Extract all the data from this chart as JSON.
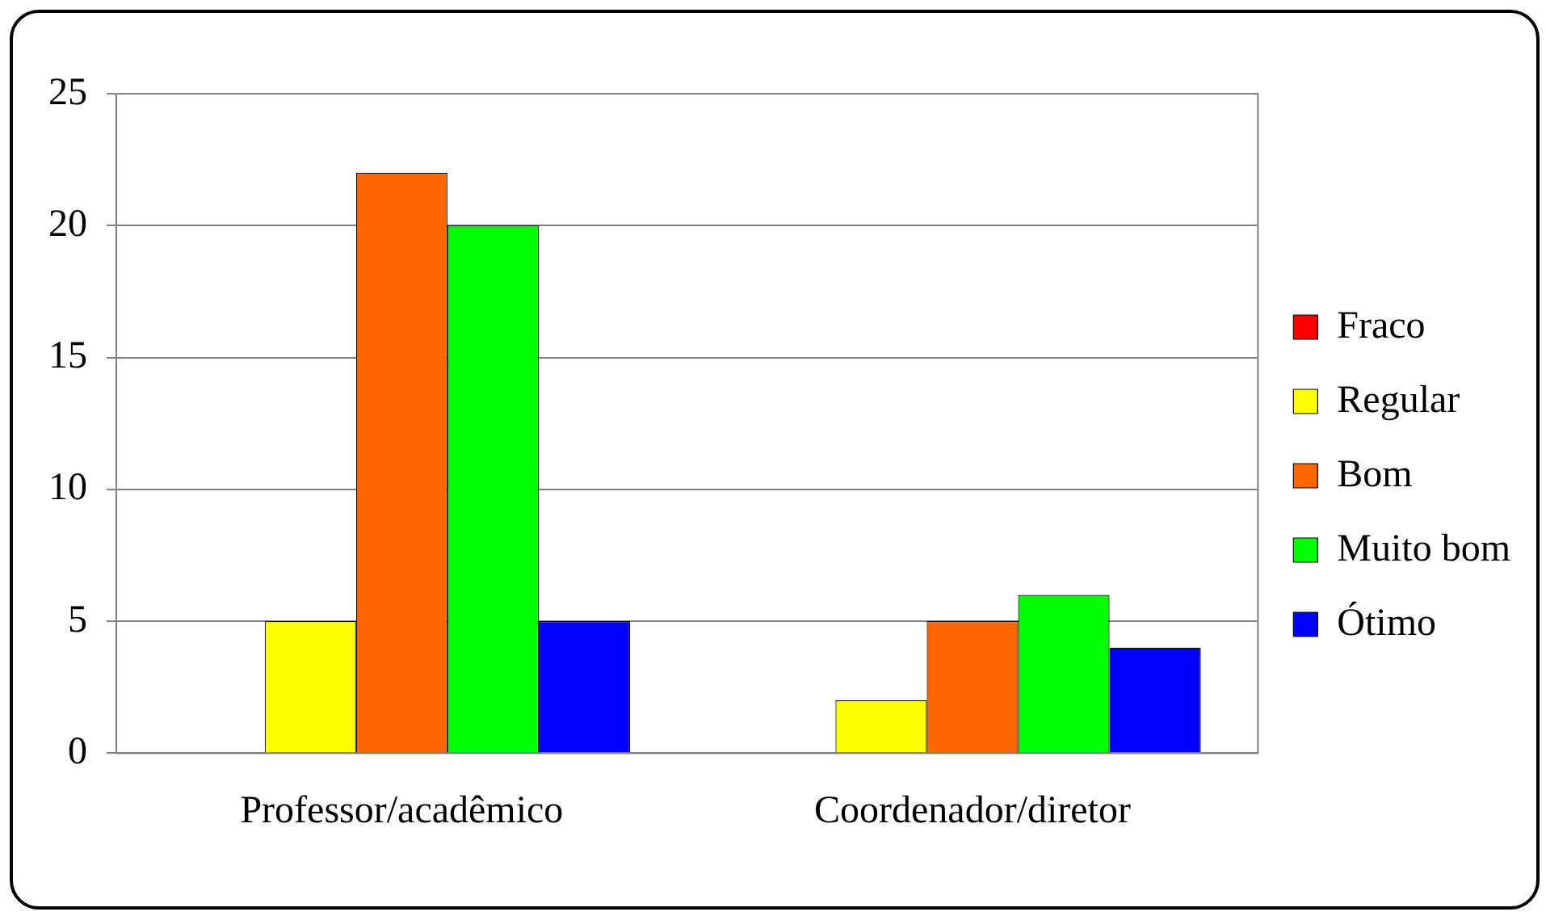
{
  "chart_data": {
    "type": "bar",
    "categories": [
      "Professor/acadêmico",
      "Coordenador/diretor"
    ],
    "series": [
      {
        "name": "Fraco",
        "color": "#ff0000",
        "values": [
          0,
          0
        ]
      },
      {
        "name": "Regular",
        "color": "#ffff00",
        "values": [
          5,
          2
        ]
      },
      {
        "name": "Bom",
        "color": "#ff6600",
        "values": [
          22,
          5
        ]
      },
      {
        "name": "Muito bom",
        "color": "#00ff00",
        "values": [
          20,
          6
        ]
      },
      {
        "name": "Ótimo",
        "color": "#0000ff",
        "values": [
          5,
          4
        ]
      }
    ],
    "ylim": [
      0,
      25
    ],
    "yticks": [
      0,
      5,
      10,
      15,
      20,
      25
    ],
    "grid": "y",
    "legend": "right"
  }
}
